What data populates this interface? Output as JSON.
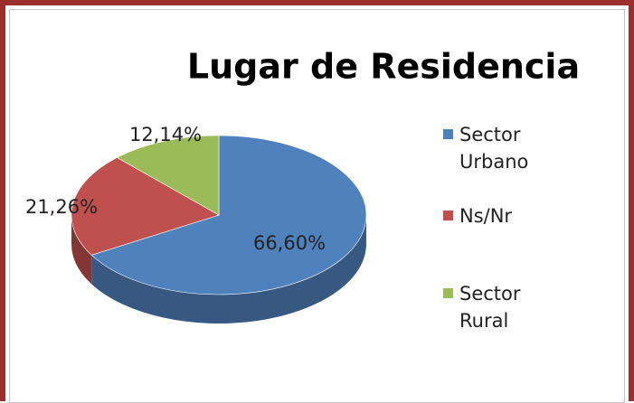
{
  "chart_data": {
    "type": "pie",
    "title": "Lugar de Residencia",
    "categories": [
      "Sector Urbano",
      "Ns/Nr",
      "Sector Rural"
    ],
    "values": [
      66.6,
      21.26,
      12.14
    ],
    "value_labels": [
      "66,60%",
      "21,26%",
      "12,14%"
    ],
    "colors": [
      "#4f81bd",
      "#c0504d",
      "#9bbb59"
    ],
    "legend": "right"
  }
}
